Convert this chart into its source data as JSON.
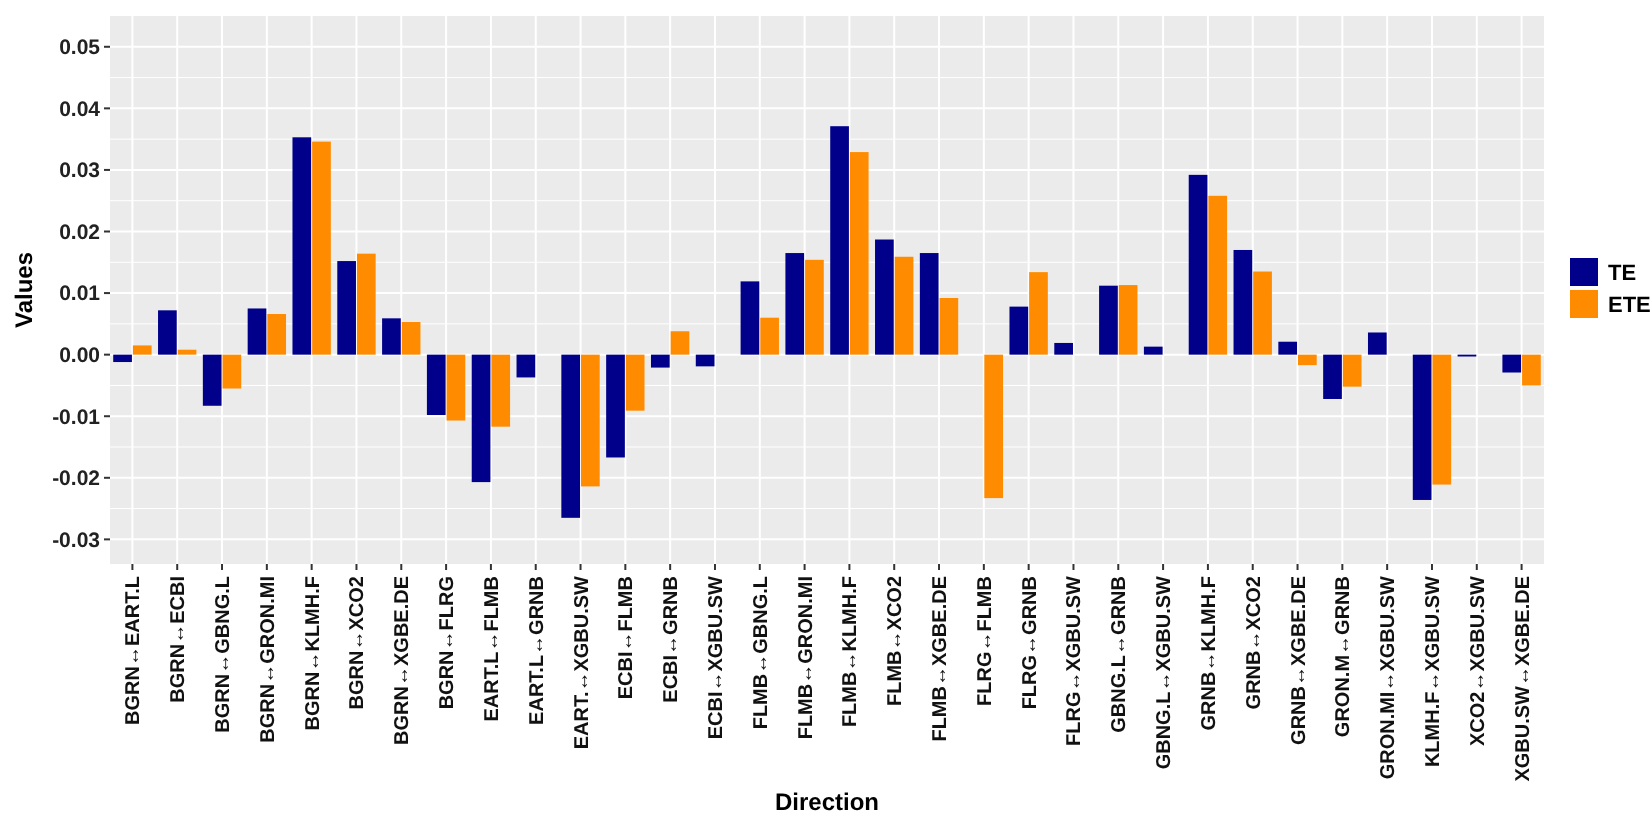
{
  "chart_data": {
    "type": "bar",
    "xlabel": "Direction",
    "ylabel": "Values",
    "categories": [
      "BGRN↔EART.L",
      "BGRN↔ECBI",
      "BGRN↔GBNG.L",
      "BGRN↔GRON.MI",
      "BGRN↔KLMH.F",
      "BGRN↔XCO2",
      "BGRN↔XGBE.DE",
      "BGRN↔FLRG",
      "EART.L↔FLMB",
      "EART.L↔GRNB",
      "EART.↔XGBU.SW",
      "ECBI↔FLMB",
      "ECBI↔GRNB",
      "ECBI↔XGBU.SW",
      "FLMB↔GBNG.L",
      "FLMB↔GRON.MI",
      "FLMB↔KLMH.F",
      "FLMB↔XCO2",
      "FLMB↔XGBE.DE",
      "FLRG↔FLMB",
      "FLRG↔GRNB",
      "FLRG↔XGBU.SW",
      "GBNG.L↔GRNB",
      "GBNG.L↔XGBU.SW",
      "GRNB↔KLMH.F",
      "GRNB↔XCO2",
      "GRNB↔XGBE.DE",
      "GRON.M↔GRNB",
      "GRON.MI↔XGBU.SW",
      "KLMH.F↔XGBU.SW",
      "XCO2↔XGBU.SW",
      "XGBU.SW↔XGBE.DE"
    ],
    "series": [
      {
        "name": "TE",
        "color": "#00008b",
        "values": [
          -0.0012,
          0.0072,
          -0.0083,
          0.0075,
          0.0353,
          0.0152,
          0.0059,
          -0.0098,
          -0.0207,
          -0.0037,
          -0.0265,
          -0.0167,
          -0.0021,
          -0.0019,
          0.0119,
          0.0165,
          0.0371,
          0.0187,
          0.0165,
          null,
          0.0078,
          0.0019,
          0.0112,
          0.0013,
          0.0292,
          0.017,
          0.0021,
          -0.0072,
          0.0036,
          -0.0236,
          -0.0003,
          -0.0029
        ]
      },
      {
        "name": "ETE",
        "color": "#ff8c00",
        "values": [
          0.0015,
          0.0008,
          -0.0055,
          0.0066,
          0.0346,
          0.0164,
          0.0053,
          -0.0107,
          -0.0117,
          null,
          -0.0214,
          -0.0091,
          0.0038,
          null,
          0.006,
          0.0154,
          0.0329,
          0.0159,
          0.0092,
          -0.0233,
          0.0134,
          null,
          0.0113,
          null,
          0.0258,
          0.0135,
          -0.0017,
          -0.0052,
          null,
          -0.0211,
          null,
          -0.005
        ]
      }
    ],
    "ylim": [
      -0.034,
      0.055
    ],
    "yticks": [
      {
        "value": -0.03,
        "label": "-0.03"
      },
      {
        "value": -0.02,
        "label": "-0.02"
      },
      {
        "value": -0.01,
        "label": "-0.01"
      },
      {
        "value": 0,
        "label": "0.00"
      },
      {
        "value": 0.01,
        "label": "0.01"
      },
      {
        "value": 0.02,
        "label": "0.02"
      },
      {
        "value": 0.03,
        "label": "0.03"
      },
      {
        "value": 0.04,
        "label": "0.04"
      },
      {
        "value": 0.05,
        "label": "0.05"
      }
    ],
    "grid": true,
    "legend": "right"
  }
}
